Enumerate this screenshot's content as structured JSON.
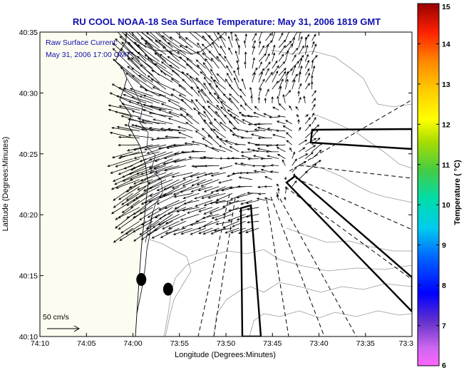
{
  "chart_data": {
    "type": "vector-field",
    "title": "RU COOL  NOAA-18  Sea Surface Temperature:  May 31, 2006 1819 GMT",
    "subtitle_lines": [
      "Raw Surface Current:",
      "May 31, 2006 17:00 GMT"
    ],
    "xlabel": "Longitude (Degrees:Minutes)",
    "ylabel": "Latitude (Degrees:Minutes)",
    "x_ticks": [
      "74:10",
      "74:05",
      "74:00",
      "73:55",
      "73:50",
      "73:45",
      "73:40",
      "73:35",
      "73:3"
    ],
    "x_tick_values": [
      -74.1667,
      -74.0833,
      -74.0,
      -73.9167,
      -73.8333,
      -73.75,
      -73.6667,
      -73.5833,
      -73.5
    ],
    "y_ticks": [
      "40:35",
      "40:30",
      "40:25",
      "40:20",
      "40:15",
      "40:10"
    ],
    "y_tick_values": [
      40.5833,
      40.5,
      40.4167,
      40.3333,
      40.25,
      40.1667
    ],
    "xlim": [
      -74.1667,
      -73.5
    ],
    "ylim": [
      40.1667,
      40.5833
    ],
    "scale_label": "50 cm/s",
    "scale_speed_cms": 50,
    "colorbar": {
      "label": "Temperature ( °C)",
      "min": 6,
      "max": 15,
      "ticks": [
        "15",
        "14",
        "13",
        "12",
        "11",
        "10",
        "9",
        "8",
        "7",
        "6"
      ]
    },
    "current_field_regions": [
      {
        "lon": -73.98,
        "lat": 40.53,
        "u": -30,
        "v": 28
      },
      {
        "lon": -73.97,
        "lat": 40.47,
        "u": -35,
        "v": 10
      },
      {
        "lon": -73.95,
        "lat": 40.4,
        "u": -38,
        "v": -15
      },
      {
        "lon": -73.97,
        "lat": 40.35,
        "u": -30,
        "v": -20
      },
      {
        "lon": -73.85,
        "lat": 40.48,
        "u": -15,
        "v": 18
      },
      {
        "lon": -73.85,
        "lat": 40.35,
        "u": -25,
        "v": -8
      },
      {
        "lon": -73.75,
        "lat": 40.52,
        "u": 8,
        "v": 14
      },
      {
        "lon": -73.75,
        "lat": 40.44,
        "u": -20,
        "v": 2
      },
      {
        "lon": -73.68,
        "lat": 40.41,
        "u": 15,
        "v": 10
      }
    ],
    "markers": [
      {
        "lon": -73.985,
        "lat": 40.2447
      },
      {
        "lon": -73.937,
        "lat": 40.2314
      }
    ],
    "grid": false
  }
}
